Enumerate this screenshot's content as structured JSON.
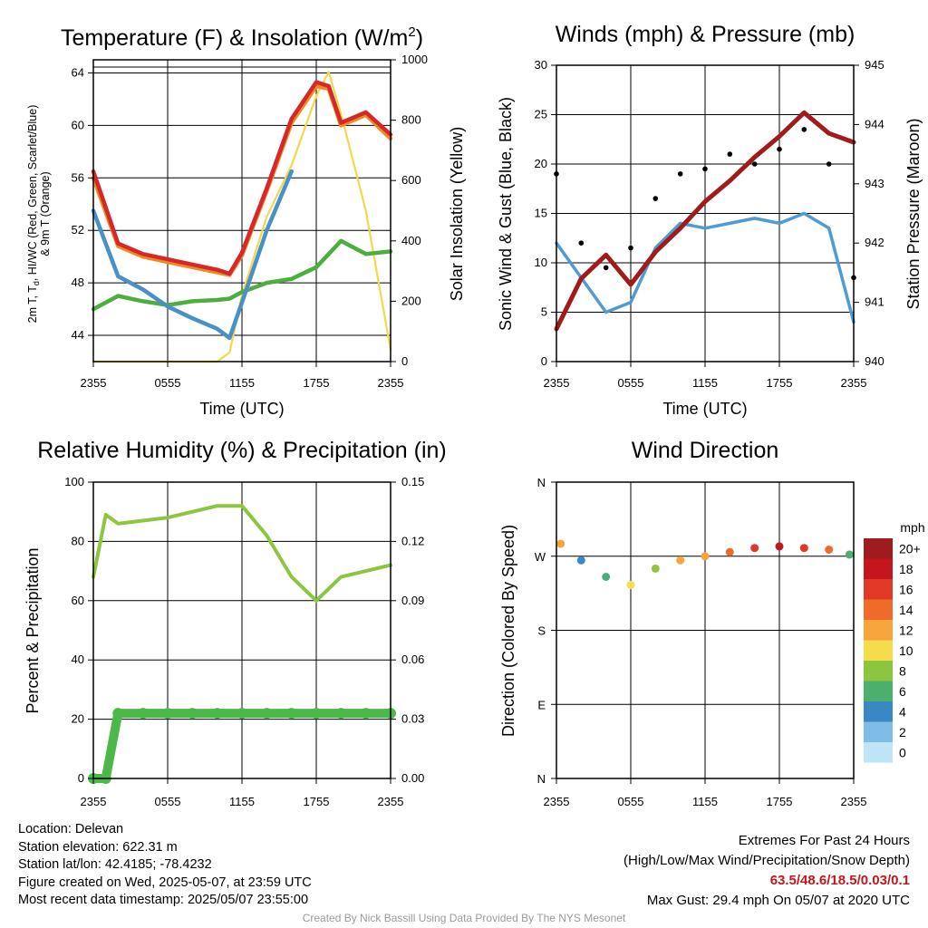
{
  "colors": {
    "red": "#d62828",
    "orange": "#f08a24",
    "blue": "#4a90c8",
    "green": "#4cae3f",
    "yellow": "#f2d84a",
    "sonic_blue": "#4f9bd6",
    "maroon": "#a11b1b",
    "rh_green": "#8cc63f",
    "precip_green": "#4cb84a"
  },
  "time_ticks": [
    "2355",
    "0555",
    "1155",
    "1755",
    "2355"
  ],
  "panels": {
    "temp": {
      "title": "Temperature (F) & Insolation (W/m",
      "title_sup": "2",
      "title_end": ")",
      "xlabel": "Time (UTC)",
      "ylabel_line1": "2m T, T",
      "ylabel_sub": "d",
      "ylabel_line1_end": ", HI/WC (Red, Green, Scarlet/Blue)",
      "ylabel_line2": "& 9m T (Orange)",
      "y2label": "Solar Insolation (Yellow)",
      "yticks": [
        "44",
        "48",
        "52",
        "56",
        "60",
        "64"
      ],
      "y2ticks": [
        "0",
        "200",
        "400",
        "600",
        "800",
        "1000"
      ]
    },
    "wind": {
      "title": "Winds (mph) & Pressure (mb)",
      "xlabel": "Time (UTC)",
      "ylabel": "Sonic Wind & Gust (Blue, Black)",
      "y2label": "Station Pressure (Maroon)",
      "yticks": [
        "0",
        "5",
        "10",
        "15",
        "20",
        "25",
        "30"
      ],
      "y2ticks": [
        "940",
        "941",
        "942",
        "943",
        "944",
        "945"
      ]
    },
    "rh": {
      "title": "Relative Humidity (%) & Precipitation (in)",
      "ylabel": "Percent & Precipitation",
      "yticks": [
        "0",
        "20",
        "40",
        "60",
        "80",
        "100"
      ],
      "y2ticks": [
        "0.00",
        "0.03",
        "0.06",
        "0.09",
        "0.12",
        "0.15"
      ]
    },
    "dir": {
      "title": "Wind Direction",
      "ylabel": "Direction (Colored By Speed)",
      "yticks": [
        "N",
        "E",
        "S",
        "W",
        "N"
      ],
      "legend_title": "mph",
      "legend_labels": [
        "20+",
        "18",
        "16",
        "14",
        "12",
        "10",
        "8",
        "6",
        "4",
        "2",
        "0"
      ],
      "legend_colors": [
        "#a01b1b",
        "#c4161c",
        "#e03a26",
        "#f06a2a",
        "#f8a43c",
        "#f6dc4c",
        "#8cc63f",
        "#4caf6e",
        "#3a87c4",
        "#7fbde6",
        "#bfe3f7"
      ]
    }
  },
  "chart_data": [
    {
      "type": "line",
      "title": "Temperature (F) & Insolation (W/m2)",
      "xlabel": "Time (UTC)",
      "ylabel": "2m T, Td, HI/WC (Red, Green, Scarlet/Blue) & 9m T (Orange)",
      "y2label": "Solar Insolation (Yellow)",
      "ylim": [
        42,
        65
      ],
      "y2lim": [
        0,
        1000
      ],
      "x": [
        "2355",
        "0155",
        "0355",
        "0555",
        "0755",
        "0955",
        "1055",
        "1155",
        "1355",
        "1555",
        "1755",
        "1855",
        "1955",
        "2155",
        "2355"
      ],
      "series": [
        {
          "name": "2m T",
          "color": "#d62828",
          "values": [
            56.5,
            51.0,
            50.2,
            49.8,
            49.4,
            49.0,
            48.7,
            50.3,
            55.2,
            60.5,
            63.3,
            63.0,
            60.2,
            61.0,
            59.3
          ]
        },
        {
          "name": "9m T",
          "color": "#f08a24",
          "values": [
            56.0,
            50.8,
            50.0,
            49.6,
            49.2,
            48.8,
            48.6,
            50.1,
            55.0,
            60.2,
            63.0,
            62.8,
            60.0,
            60.8,
            59.0
          ]
        },
        {
          "name": "Td",
          "color": "#4cae3f",
          "values": [
            46.0,
            47.0,
            46.6,
            46.3,
            46.6,
            46.7,
            46.8,
            47.3,
            48.0,
            48.3,
            49.2,
            50.2,
            51.2,
            50.2,
            50.4
          ]
        },
        {
          "name": "HI/WC",
          "color": "#4a90c8",
          "values": [
            53.5,
            48.5,
            47.5,
            46.2,
            45.3,
            44.5,
            43.8,
            46.5,
            52.0,
            56.5,
            null,
            null,
            null,
            null,
            null
          ]
        },
        {
          "name": "Insolation",
          "color": "#f2d84a",
          "axis": "y2",
          "values": [
            0,
            0,
            0,
            0,
            0,
            0,
            30,
            220,
            480,
            650,
            880,
            960,
            820,
            500,
            40
          ]
        }
      ]
    },
    {
      "type": "line",
      "title": "Winds (mph) & Pressure (mb)",
      "xlabel": "Time (UTC)",
      "ylabel": "Sonic Wind & Gust (Blue, Black)",
      "y2label": "Station Pressure (Maroon)",
      "ylim": [
        0,
        30
      ],
      "y2lim": [
        940,
        945
      ],
      "x": [
        "2355",
        "0155",
        "0355",
        "0555",
        "0755",
        "0955",
        "1155",
        "1355",
        "1555",
        "1755",
        "1955",
        "2155",
        "2355"
      ],
      "series": [
        {
          "name": "Sonic Wind",
          "color": "#4f9bd6",
          "values": [
            12.0,
            8.5,
            5.0,
            6.0,
            11.5,
            14.0,
            13.5,
            14.0,
            14.5,
            14.0,
            15.0,
            13.5,
            4.0
          ]
        },
        {
          "name": "Gust",
          "color": "#000000",
          "type": "scatter",
          "values": [
            19.0,
            12.0,
            9.5,
            11.5,
            16.5,
            19.0,
            19.5,
            21.0,
            20.0,
            21.5,
            23.5,
            20.0,
            8.5
          ]
        },
        {
          "name": "Station Pressure",
          "color": "#a11b1b",
          "axis": "y2",
          "values": [
            940.55,
            941.4,
            941.8,
            941.3,
            941.85,
            942.25,
            942.7,
            943.05,
            943.45,
            943.8,
            944.2,
            943.85,
            943.7
          ]
        }
      ]
    },
    {
      "type": "line",
      "title": "Relative Humidity (%) & Precipitation (in)",
      "ylabel": "Percent & Precipitation",
      "ylim": [
        0,
        100
      ],
      "y2lim": [
        0,
        0.15
      ],
      "x": [
        "2355",
        "0055",
        "0155",
        "0355",
        "0555",
        "0755",
        "0955",
        "1155",
        "1355",
        "1555",
        "1755",
        "1955",
        "2155",
        "2355"
      ],
      "series": [
        {
          "name": "Relative Humidity",
          "color": "#8cc63f",
          "values": [
            68,
            89,
            86,
            87,
            88,
            90,
            92,
            92,
            82,
            68,
            60,
            68,
            70,
            72
          ]
        },
        {
          "name": "Precipitation",
          "color": "#4cb84a",
          "axis": "y2",
          "values": [
            0.0,
            0.0,
            0.033,
            0.033,
            0.033,
            0.033,
            0.033,
            0.033,
            0.033,
            0.033,
            0.033,
            0.033,
            0.033,
            0.033
          ]
        }
      ]
    },
    {
      "type": "scatter",
      "title": "Wind Direction",
      "ylabel": "Direction (Colored By Speed)",
      "ylim": [
        0,
        360
      ],
      "x": [
        "0015",
        "0155",
        "0355",
        "0555",
        "0755",
        "0955",
        "1155",
        "1355",
        "1555",
        "1755",
        "1955",
        "2155",
        "2335"
      ],
      "series": [
        {
          "name": "Direction",
          "values": [
            285,
            265,
            245,
            235,
            255,
            265,
            270,
            275,
            280,
            282,
            280,
            278,
            272
          ]
        },
        {
          "name": "Speed",
          "values": [
            12,
            5,
            7,
            10,
            8,
            13,
            12,
            14,
            16,
            18,
            17,
            15,
            6
          ]
        }
      ]
    }
  ],
  "info": {
    "location": "Location: Delevan",
    "elevation": "Station elevation: 622.31 m",
    "latlon": "Station lat/lon: 42.4185; -78.4232",
    "created": "Figure created on Wed, 2025-05-07, at 23:59 UTC",
    "recent": "Most recent data timestamp: 2025/05/07 23:55:00"
  },
  "extremes": {
    "line1": "Extremes For Past 24 Hours",
    "line2": "(High/Low/Max Wind/Precipitation/Snow Depth)",
    "values": "63.5/48.6/18.5/0.03/0.1",
    "gust": "Max Gust: 29.4 mph On 05/07 at 2020 UTC"
  },
  "credit": "Created By Nick Bassill Using Data Provided By The NYS Mesonet"
}
